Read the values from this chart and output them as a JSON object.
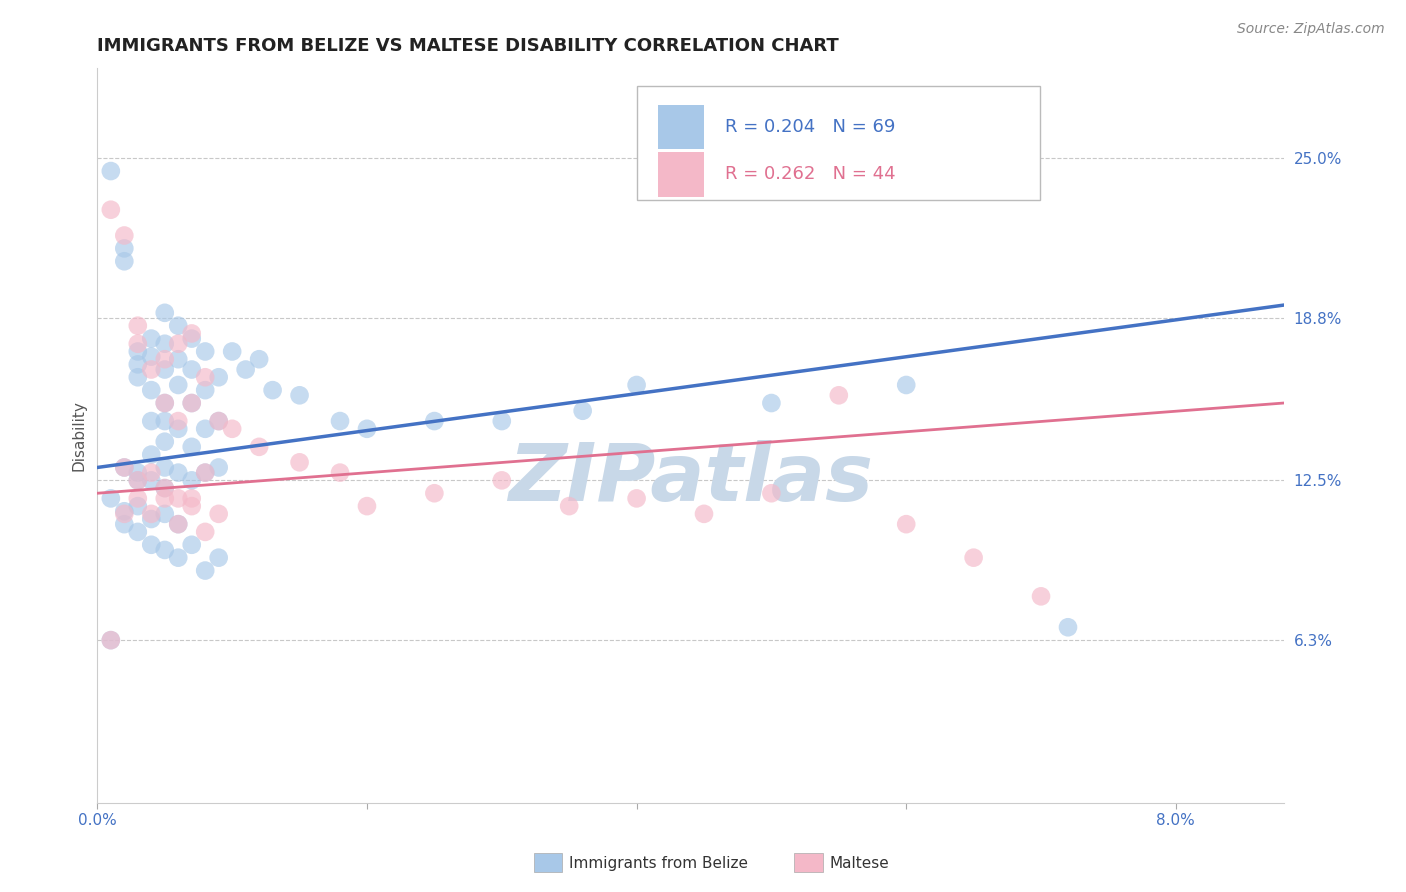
{
  "title": "IMMIGRANTS FROM BELIZE VS MALTESE DISABILITY CORRELATION CHART",
  "source": "Source: ZipAtlas.com",
  "ylabel": "Disability",
  "xlim": [
    0.0,
    0.088
  ],
  "ylim": [
    0.0,
    0.285
  ],
  "yticks": [
    0.063,
    0.125,
    0.188,
    0.25
  ],
  "ytick_labels": [
    "6.3%",
    "12.5%",
    "18.8%",
    "25.0%"
  ],
  "xtick_vals": [
    0.0,
    0.02,
    0.04,
    0.06,
    0.08
  ],
  "xtick_labels": [
    "0.0%",
    "",
    "",
    "",
    "8.0%"
  ],
  "grid_color": "#c8c8c8",
  "background_color": "#ffffff",
  "watermark": "ZIPatlas",
  "watermark_color": "#c8d8e8",
  "series1_name": "Immigrants from Belize",
  "series1_color": "#a8c8e8",
  "series1_line_color": "#4472c4",
  "series1_R": 0.204,
  "series1_N": 69,
  "series1_trend_x": [
    0.0,
    0.088
  ],
  "series1_trend_y": [
    0.13,
    0.193
  ],
  "series2_name": "Maltese",
  "series2_color": "#f4b8c8",
  "series2_line_color": "#e07090",
  "series2_R": 0.262,
  "series2_N": 44,
  "series2_trend_x": [
    0.0,
    0.088
  ],
  "series2_trend_y": [
    0.12,
    0.155
  ],
  "blue_scatter_x": [
    0.001,
    0.002,
    0.002,
    0.002,
    0.003,
    0.003,
    0.003,
    0.003,
    0.003,
    0.004,
    0.004,
    0.004,
    0.004,
    0.004,
    0.004,
    0.005,
    0.005,
    0.005,
    0.005,
    0.005,
    0.005,
    0.005,
    0.005,
    0.006,
    0.006,
    0.006,
    0.006,
    0.006,
    0.007,
    0.007,
    0.007,
    0.007,
    0.007,
    0.008,
    0.008,
    0.008,
    0.008,
    0.009,
    0.009,
    0.009,
    0.001,
    0.002,
    0.002,
    0.003,
    0.003,
    0.004,
    0.004,
    0.005,
    0.005,
    0.006,
    0.006,
    0.007,
    0.008,
    0.009,
    0.01,
    0.011,
    0.012,
    0.013,
    0.015,
    0.018,
    0.02,
    0.025,
    0.03,
    0.036,
    0.04,
    0.05,
    0.06,
    0.072,
    0.001
  ],
  "blue_scatter_y": [
    0.245,
    0.215,
    0.21,
    0.13,
    0.175,
    0.17,
    0.165,
    0.128,
    0.125,
    0.18,
    0.173,
    0.16,
    0.148,
    0.135,
    0.125,
    0.19,
    0.178,
    0.168,
    0.155,
    0.148,
    0.14,
    0.13,
    0.122,
    0.185,
    0.172,
    0.162,
    0.145,
    0.128,
    0.18,
    0.168,
    0.155,
    0.138,
    0.125,
    0.175,
    0.16,
    0.145,
    0.128,
    0.165,
    0.148,
    0.13,
    0.118,
    0.113,
    0.108,
    0.115,
    0.105,
    0.11,
    0.1,
    0.112,
    0.098,
    0.108,
    0.095,
    0.1,
    0.09,
    0.095,
    0.175,
    0.168,
    0.172,
    0.16,
    0.158,
    0.148,
    0.145,
    0.148,
    0.148,
    0.152,
    0.162,
    0.155,
    0.162,
    0.068,
    0.063
  ],
  "pink_scatter_x": [
    0.001,
    0.002,
    0.002,
    0.003,
    0.003,
    0.003,
    0.004,
    0.004,
    0.005,
    0.005,
    0.005,
    0.006,
    0.006,
    0.006,
    0.007,
    0.007,
    0.007,
    0.008,
    0.008,
    0.009,
    0.002,
    0.003,
    0.004,
    0.005,
    0.006,
    0.007,
    0.008,
    0.009,
    0.01,
    0.012,
    0.015,
    0.018,
    0.02,
    0.025,
    0.03,
    0.035,
    0.04,
    0.045,
    0.05,
    0.055,
    0.06,
    0.065,
    0.07,
    0.001
  ],
  "pink_scatter_y": [
    0.23,
    0.22,
    0.13,
    0.185,
    0.178,
    0.125,
    0.168,
    0.128,
    0.172,
    0.155,
    0.122,
    0.178,
    0.148,
    0.118,
    0.182,
    0.155,
    0.118,
    0.165,
    0.128,
    0.148,
    0.112,
    0.118,
    0.112,
    0.118,
    0.108,
    0.115,
    0.105,
    0.112,
    0.145,
    0.138,
    0.132,
    0.128,
    0.115,
    0.12,
    0.125,
    0.115,
    0.118,
    0.112,
    0.12,
    0.158,
    0.108,
    0.095,
    0.08,
    0.063
  ],
  "title_fontsize": 13,
  "axis_label_fontsize": 11,
  "tick_fontsize": 11,
  "right_tick_color": "#4472c4",
  "xtick_color": "#4472c4"
}
